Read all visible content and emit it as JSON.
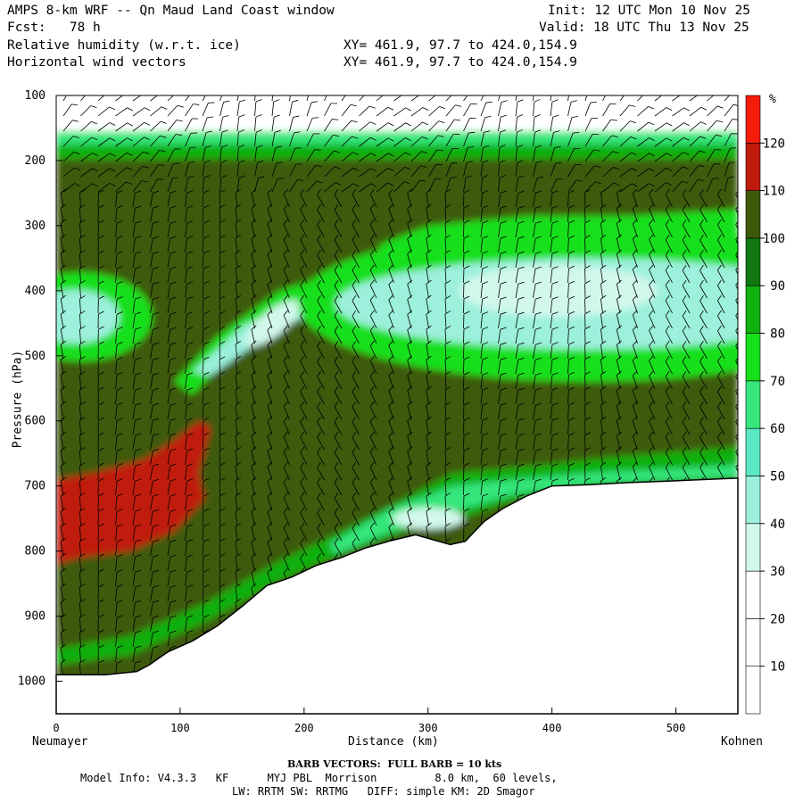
{
  "header": {
    "line1_left": "AMPS 8-km WRF -- Qn Maud Land Coast window",
    "line1_right": "Init: 12 UTC Mon 10 Nov 25",
    "line2_left": "Fcst:   78 h",
    "line2_right": "Valid: 18 UTC Thu 13 Nov 25",
    "line3_left": "Relative humidity (w.r.t. ice)",
    "line3_right": "XY= 461.9, 97.7 to 424.0,154.9",
    "line4_left": "Horizontal wind vectors",
    "line4_right": "XY= 461.9, 97.7 to 424.0,154.9"
  },
  "footer": {
    "barb_note": "BARB VECTORS:  FULL BARB = 10 kts",
    "model_info": "Model Info: V4.3.3   KF      MYJ PBL  Morrison         8.0 km,  60 levels,",
    "physics": "LW: RRTM SW: RRTMG   DIFF: simple KM: 2D Smagor"
  },
  "chart_data": {
    "type": "heatmap",
    "xlabel": "Distance (km)",
    "ylabel": "Pressure (hPa)",
    "xlim": [
      0,
      550
    ],
    "ylim": [
      1050,
      100
    ],
    "x_ticks": [
      "0",
      "100",
      "200",
      "300",
      "400",
      "500"
    ],
    "x_tick_values": [
      0,
      100,
      200,
      300,
      400,
      500
    ],
    "y_ticks": [
      "100",
      "200",
      "300",
      "400",
      "500",
      "600",
      "700",
      "800",
      "900",
      "1000"
    ],
    "y_tick_values": [
      100,
      200,
      300,
      400,
      500,
      600,
      700,
      800,
      900,
      1000
    ],
    "x_endpoint_left": "Neumayer",
    "x_endpoint_right": "Kohnen",
    "colorbar": {
      "unit": "%",
      "boundaries": [
        0,
        10,
        20,
        30,
        40,
        50,
        60,
        70,
        80,
        90,
        100,
        110,
        120,
        130
      ],
      "labels": [
        "10",
        "20",
        "30",
        "40",
        "50",
        "60",
        "70",
        "80",
        "90",
        "100",
        "110",
        "120"
      ],
      "colors": [
        "#ffffff",
        "#ffffff",
        "#ffffff",
        "#d2f8ec",
        "#9cf0dc",
        "#5ae8c4",
        "#36e67c",
        "#16e01a",
        "#10b010",
        "#107810",
        "#3e5a08",
        "#c01a0a",
        "#f51b0b"
      ]
    },
    "terrain_surface": {
      "x_km": [
        0,
        40,
        65,
        75,
        90,
        110,
        130,
        150,
        170,
        190,
        210,
        230,
        250,
        270,
        290,
        305,
        318,
        330,
        345,
        360,
        380,
        400,
        430,
        460,
        500,
        550
      ],
      "p_hpa": [
        990,
        990,
        985,
        975,
        955,
        938,
        915,
        885,
        853,
        840,
        822,
        810,
        795,
        784,
        775,
        783,
        790,
        785,
        755,
        735,
        715,
        700,
        698,
        695,
        692,
        688
      ]
    },
    "regions": [
      {
        "category": "100-110",
        "desc": "background moist air 200-1000 hPa"
      },
      {
        "category": "30-40",
        "desc": "dry upper layer near 100-170 hPa"
      },
      {
        "category": "110-120",
        "desc": "saturated low layer x 0-120 km, 600-800 hPa"
      },
      {
        "category": "30-40",
        "desc": "dry tongue x 110-220 km, 400-580 hPa"
      },
      {
        "category": "30-40",
        "desc": "dry pocket x 350-550 km, 300-500 hPa"
      },
      {
        "category": "30-40",
        "desc": "dry near surface x 260-380 km, 700-800 hPa"
      }
    ],
    "wind_barbs": "horizontal wind barbs plotted on a regular grid across the cross-section"
  }
}
